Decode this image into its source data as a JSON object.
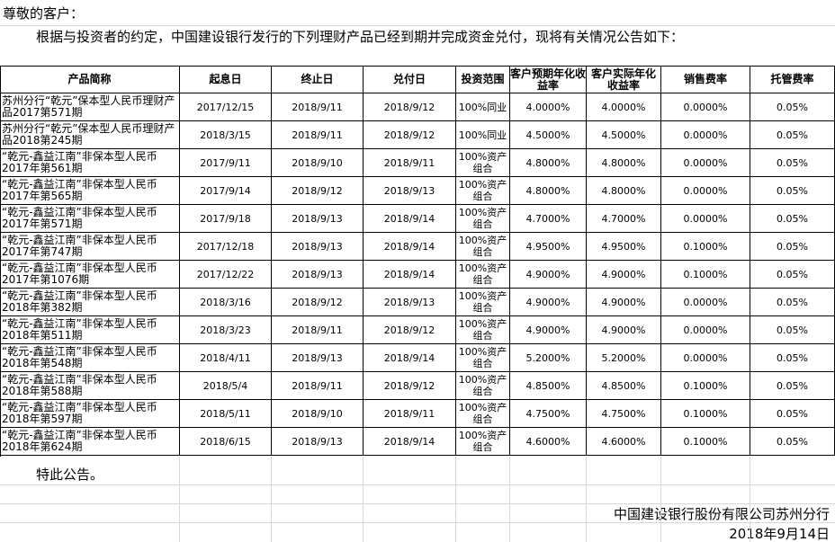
{
  "greeting": "尊敬的客户：",
  "intro": "根据与投资者的约定，中国建设银行发行的下列理财产品已经到期并完成资金兑付，现将有关情况公告如下：",
  "table": {
    "header": [
      "产品简称",
      "起息日",
      "终止日",
      "兑付日",
      "投资范围",
      "客户预期年化收益率",
      "客户实际年化收益率",
      "销售费率",
      "托管费率"
    ],
    "rows": [
      [
        "苏州分行“乾元”保本型人民币理财产品2017第571期",
        "2017/12/15",
        "2018/9/11",
        "2018/9/12",
        "100%同业",
        "4.0000%",
        "4.0000%",
        "0.0000%",
        "0.05%"
      ],
      [
        "苏州分行“乾元”保本型人民币理财产品2018第245期",
        "2018/3/15",
        "2018/9/11",
        "2018/9/12",
        "100%同业",
        "4.5000%",
        "4.5000%",
        "0.0000%",
        "0.05%"
      ],
      [
        "“乾元-鑫益江南”非保本型人民币2017年第561期",
        "2017/9/11",
        "2018/9/10",
        "2018/9/11",
        "100%资产组合",
        "4.8000%",
        "4.8000%",
        "0.0000%",
        "0.05%"
      ],
      [
        "“乾元-鑫益江南”非保本型人民币2017年第565期",
        "2017/9/14",
        "2018/9/12",
        "2018/9/13",
        "100%资产组合",
        "4.8000%",
        "4.8000%",
        "0.0000%",
        "0.05%"
      ],
      [
        "“乾元-鑫益江南”非保本型人民币2017年第571期",
        "2017/9/18",
        "2018/9/13",
        "2018/9/14",
        "100%资产组合",
        "4.7000%",
        "4.7000%",
        "0.0000%",
        "0.05%"
      ],
      [
        "“乾元-鑫益江南”非保本型人民币2017年第747期",
        "2017/12/18",
        "2018/9/13",
        "2018/9/14",
        "100%资产组合",
        "4.9500%",
        "4.9500%",
        "0.1000%",
        "0.05%"
      ],
      [
        "“乾元-鑫益江南”非保本型人民币2017年第1076期",
        "2017/12/22",
        "2018/9/13",
        "2018/9/14",
        "100%资产组合",
        "4.9000%",
        "4.9000%",
        "0.1000%",
        "0.05%"
      ],
      [
        "“乾元-鑫益江南”非保本型人民币2018年第382期",
        "2018/3/16",
        "2018/9/12",
        "2018/9/13",
        "100%资产组合",
        "4.9000%",
        "4.9000%",
        "0.0000%",
        "0.05%"
      ],
      [
        "“乾元-鑫益江南”非保本型人民币2018年第511期",
        "2018/3/23",
        "2018/9/11",
        "2018/9/12",
        "100%资产组合",
        "4.9000%",
        "4.9000%",
        "0.0000%",
        "0.05%"
      ],
      [
        "“乾元-鑫益江南”非保本型人民币2018年第548期",
        "2018/4/11",
        "2018/9/13",
        "2018/9/14",
        "100%资产组合",
        "5.2000%",
        "5.2000%",
        "0.0000%",
        "0.05%"
      ],
      [
        "“乾元-鑫益江南”非保本型人民币2018年第588期",
        "2018/5/4",
        "2018/9/11",
        "2018/9/12",
        "100%资产组合",
        "4.8500%",
        "4.8500%",
        "0.1000%",
        "0.05%"
      ],
      [
        "“乾元-鑫益江南”非保本型人民币2018年第597期",
        "2018/5/11",
        "2018/9/10",
        "2018/9/11",
        "100%资产组合",
        "4.7500%",
        "4.7500%",
        "0.1000%",
        "0.05%"
      ],
      [
        "“乾元-鑫益江南”非保本型人民币2018年第624期",
        "2018/6/15",
        "2018/9/13",
        "2018/9/14",
        "100%资产组合",
        "4.6000%",
        "4.6000%",
        "0.1000%",
        "0.05%"
      ]
    ]
  },
  "closing": "特此公告。",
  "signature": "中国建设银行股份有限公司苏州分行",
  "date": "2018年9月14日"
}
